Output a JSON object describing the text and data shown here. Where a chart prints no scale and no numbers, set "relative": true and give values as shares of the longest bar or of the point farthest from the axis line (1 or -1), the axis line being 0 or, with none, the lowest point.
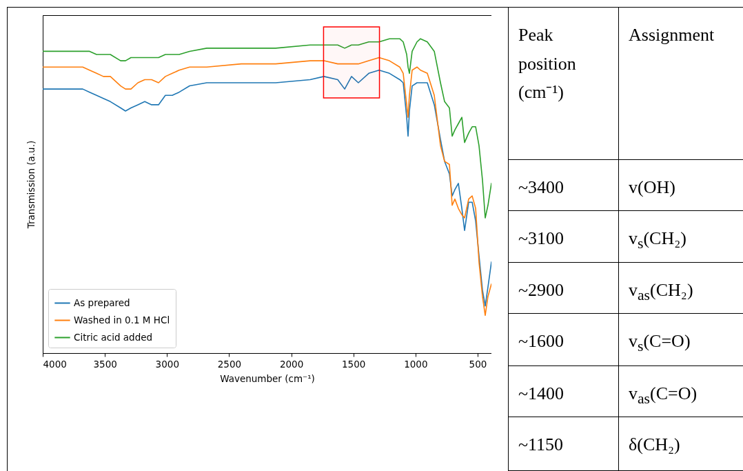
{
  "chart_data": [
    {
      "type": "line",
      "xlabel": "Wavenumber (cm⁻¹)",
      "ylabel": "Transmission (a.u.)",
      "relative": true,
      "xlim": [
        4000,
        389
      ],
      "xticks": [
        4000,
        3500,
        3000,
        2500,
        2000,
        1500,
        1000,
        500
      ],
      "grid": false,
      "legend": "bottom left",
      "line_style": "solid",
      "marker": "none",
      "x": [
        4000,
        3789,
        3678,
        3623,
        3567,
        3512,
        3456,
        3373,
        3334,
        3290,
        3234,
        3179,
        3124,
        3068,
        3013,
        2957,
        2902,
        2818,
        2680,
        2402,
        2125,
        1848,
        1737,
        1626,
        1570,
        1515,
        1460,
        1376,
        1293,
        1210,
        1127,
        1099,
        1071,
        1060,
        1049,
        1027,
        988,
        960,
        905,
        849,
        799,
        766,
        727,
        705,
        683,
        655,
        627,
        605,
        572,
        544,
        516,
        489,
        461,
        439,
        417,
        389
      ],
      "series": [
        {
          "name": "As prepared",
          "color": "#1f77b4",
          "values": [
            0.84,
            0.84,
            0.84,
            0.83,
            0.82,
            0.81,
            0.8,
            0.78,
            0.77,
            0.78,
            0.79,
            0.8,
            0.79,
            0.79,
            0.82,
            0.82,
            0.83,
            0.85,
            0.86,
            0.86,
            0.86,
            0.87,
            0.88,
            0.87,
            0.84,
            0.88,
            0.86,
            0.89,
            0.9,
            0.89,
            0.87,
            0.86,
            0.75,
            0.69,
            0.77,
            0.85,
            0.86,
            0.86,
            0.86,
            0.79,
            0.68,
            0.61,
            0.57,
            0.5,
            0.52,
            0.54,
            0.46,
            0.39,
            0.48,
            0.48,
            0.42,
            0.31,
            0.2,
            0.15,
            0.21,
            0.29
          ]
        },
        {
          "name": "Washed in 0.1 M HCl",
          "color": "#ff7f0e",
          "values": [
            0.91,
            0.91,
            0.91,
            0.9,
            0.89,
            0.88,
            0.88,
            0.85,
            0.84,
            0.84,
            0.86,
            0.87,
            0.87,
            0.86,
            0.88,
            0.89,
            0.9,
            0.91,
            0.91,
            0.92,
            0.92,
            0.93,
            0.93,
            0.92,
            0.92,
            0.92,
            0.92,
            0.93,
            0.94,
            0.93,
            0.91,
            0.89,
            0.79,
            0.75,
            0.82,
            0.9,
            0.91,
            0.9,
            0.89,
            0.82,
            0.66,
            0.61,
            0.6,
            0.47,
            0.49,
            0.46,
            0.44,
            0.43,
            0.49,
            0.5,
            0.46,
            0.29,
            0.18,
            0.12,
            0.18,
            0.22
          ]
        },
        {
          "name": "Citric acid added",
          "color": "#2ca02c",
          "values": [
            0.96,
            0.96,
            0.96,
            0.96,
            0.95,
            0.95,
            0.95,
            0.93,
            0.93,
            0.94,
            0.94,
            0.94,
            0.94,
            0.94,
            0.95,
            0.95,
            0.95,
            0.96,
            0.97,
            0.97,
            0.97,
            0.98,
            0.98,
            0.98,
            0.97,
            0.98,
            0.98,
            0.99,
            0.99,
            1.0,
            1.0,
            0.99,
            0.95,
            0.91,
            0.89,
            0.96,
            0.99,
            1.0,
            0.99,
            0.96,
            0.86,
            0.8,
            0.78,
            0.69,
            0.71,
            0.73,
            0.75,
            0.67,
            0.7,
            0.72,
            0.72,
            0.66,
            0.55,
            0.43,
            0.47,
            0.54
          ]
        }
      ],
      "bands": [
        {
          "axis": "x",
          "from": 1740,
          "to": 1290,
          "color": "#ff0000"
        }
      ]
    },
    {
      "type": "other",
      "annotations": [
        "Peak position (cm⁻¹)",
        "Assignment",
        "~3400",
        "v(OH)",
        "~3100",
        "v$_{s}$(CH₂)",
        "~2900",
        "v$_{as}$(CH₂)",
        "~1600",
        "v$_{s}$(C=O)",
        "~1400",
        "v$_{as}$(C=O)",
        "~1150",
        "δ(CH₂)"
      ]
    }
  ]
}
